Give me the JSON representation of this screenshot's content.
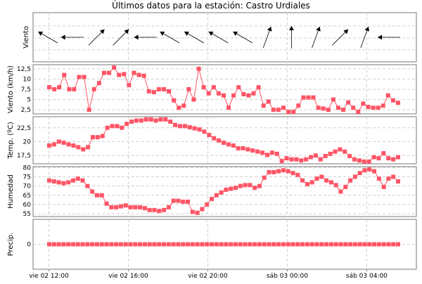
{
  "title": "Últimos datos para la estación: Castro Urdiales",
  "colors": {
    "series": "#ff5566",
    "grid": "#cfcfcf",
    "frame": "#777777",
    "arrow": "#000000"
  },
  "chart_data": [
    {
      "type": "wind-barbs",
      "ylabel": "Viento",
      "directions_deg_to": [
        300,
        270,
        45,
        45,
        270,
        300,
        300,
        300,
        300,
        20,
        0,
        20,
        45,
        20,
        270
      ]
    },
    {
      "type": "line",
      "ylabel": "Viento (km/h)",
      "ylim": [
        1.5,
        13.5
      ],
      "yticks": [
        "12,5",
        "10",
        "7,5",
        "5",
        "2,5"
      ],
      "yticks_values": [
        12.5,
        10,
        7.5,
        5,
        2.5
      ],
      "values": [
        8,
        7.5,
        8,
        11,
        7.5,
        7.5,
        10.5,
        10.5,
        2.5,
        7.5,
        9,
        11.5,
        11.5,
        12.8,
        11,
        11.2,
        8.5,
        11.5,
        11,
        10.8,
        7,
        6.8,
        7.5,
        7.5,
        7,
        4.8,
        3,
        3.5,
        7.5,
        5,
        12.5,
        8,
        6.5,
        8,
        6.5,
        6,
        3,
        6,
        8,
        6.3,
        6,
        6.5,
        8,
        3.5,
        4.5,
        2.5,
        2.5,
        3,
        2,
        2,
        3.5,
        5.5,
        5.5,
        5.5,
        3,
        2.8,
        2.5,
        5,
        3,
        2.5,
        4.3,
        3,
        2,
        4,
        3.2,
        3,
        3,
        3.5,
        6,
        4.8,
        4.2
      ]
    },
    {
      "type": "line",
      "ylabel": "Temp. (ºC)",
      "ylim": [
        16,
        24.5
      ],
      "yticks": [
        "22,5",
        "20",
        "17,5"
      ],
      "yticks_values": [
        22.5,
        20,
        17.5
      ],
      "values": [
        19.3,
        19.5,
        20,
        19.8,
        19.5,
        19.3,
        19,
        18.6,
        19,
        20.8,
        20.8,
        21,
        22.5,
        22.8,
        22.8,
        22.5,
        23.2,
        23.6,
        23.8,
        23.8,
        24,
        24,
        23.8,
        24,
        24,
        23.6,
        23,
        22.8,
        22.8,
        22.6,
        22.4,
        22.2,
        21.8,
        21.2,
        20.6,
        20.2,
        19.8,
        19.5,
        19.3,
        18.8,
        18.8,
        18.6,
        18.4,
        18.2,
        18,
        17.6,
        18,
        17.8,
        16.5,
        17,
        16.8,
        16.8,
        16.6,
        16.8,
        17.2,
        17.5,
        16.8,
        17.4,
        17.8,
        18.2,
        18.6,
        18.2,
        17.4,
        16.8,
        16.6,
        16.4,
        16.4,
        17.2,
        17,
        17.9,
        17,
        16.8,
        17.2
      ]
    },
    {
      "type": "line",
      "ylabel": "Humedad",
      "ylim": [
        53.5,
        80.5
      ],
      "yticks": [
        "80",
        "75",
        "70",
        "65",
        "60",
        "55"
      ],
      "yticks_values": [
        80,
        75,
        70,
        65,
        60,
        55
      ],
      "values": [
        73,
        72.5,
        72,
        71.5,
        72,
        73,
        74,
        73,
        70,
        67,
        65,
        65,
        60.5,
        58.5,
        58.5,
        59,
        59.5,
        58.5,
        58.5,
        58.5,
        58,
        57,
        57,
        56.5,
        57,
        58.5,
        62,
        62,
        61.5,
        61.5,
        56,
        55.5,
        57.5,
        60,
        63,
        65,
        66.5,
        68,
        68.5,
        69,
        70,
        70.5,
        70.5,
        69,
        70,
        74.5,
        77.5,
        77.5,
        78,
        78.5,
        78,
        77,
        76,
        73,
        71,
        72,
        74,
        75,
        73,
        72,
        70.5,
        67,
        69.5,
        73,
        75,
        77,
        78.5,
        79,
        78,
        74,
        69.5,
        74,
        75,
        72.5
      ]
    },
    {
      "type": "line",
      "ylabel": "Precip.",
      "ylim": [
        -1,
        1
      ],
      "yticks": [
        "0"
      ],
      "yticks_values": [
        0
      ],
      "values": [
        0
      ]
    }
  ],
  "x_axis": {
    "tick_labels": [
      "vie 02 12:00",
      "vie 02 16:00",
      "vie 02 20:00",
      "sáb 03 00:00",
      "sáb 03 04:00"
    ],
    "tick_hours": [
      12,
      16,
      20,
      24,
      28
    ],
    "start_hour": 11.2,
    "end_hour": 30.5,
    "sample_step_minutes": 20
  }
}
